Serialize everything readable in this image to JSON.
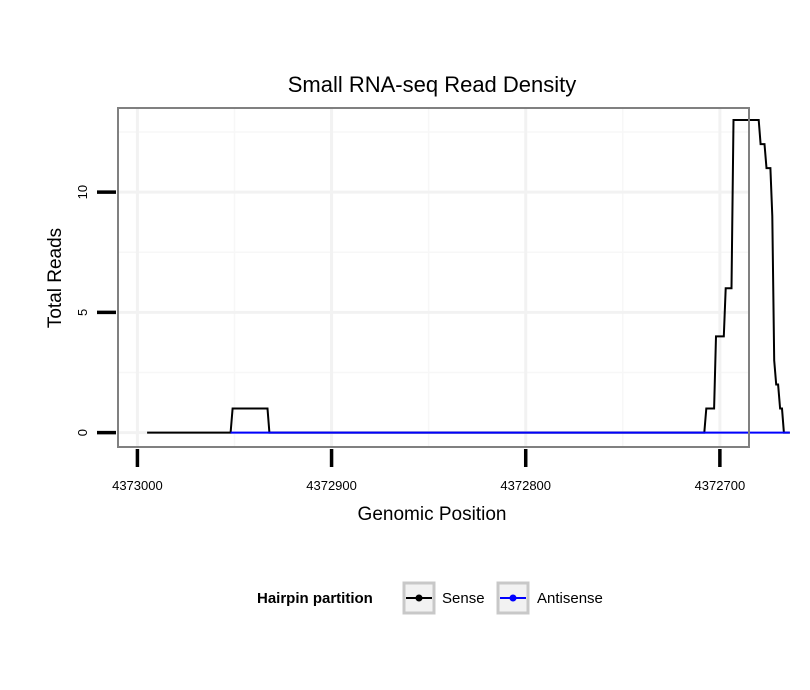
{
  "chart_data": {
    "type": "line",
    "title": "Small RNA-seq Read Density",
    "xlabel": "Genomic Position",
    "ylabel": "Total Reads",
    "x_reversed": true,
    "xlim": [
      4373010,
      4372685
    ],
    "ylim": [
      -0.6,
      13.5
    ],
    "x_ticks": [
      4373000,
      4372900,
      4372800,
      4372700
    ],
    "x_tick_labels": [
      "4373000",
      "4372900",
      "4372800",
      "4372700"
    ],
    "x_minor_ticks": [
      4372950,
      4372850,
      4372750
    ],
    "y_ticks": [
      0,
      5,
      10
    ],
    "y_tick_labels": [
      "0",
      "5",
      "10"
    ],
    "y_minor_ticks": [
      2.5,
      7.5,
      12.5
    ],
    "grid": true,
    "legend": {
      "title": "Hairpin partition",
      "position": "bottom",
      "entries": [
        "Sense",
        "Antisense"
      ]
    },
    "series": [
      {
        "name": "Sense",
        "color": "#000000",
        "x": [
          4372995,
          4372952,
          4372951,
          4372933,
          4372932,
          4372708,
          4372707,
          4372703,
          4372702,
          4372698,
          4372697,
          4372694,
          4372693,
          4372690,
          4372689,
          4372680,
          4372679,
          4372677,
          4372676,
          4372674,
          4372673,
          4372672,
          4372671,
          4372670,
          4372669,
          4372668,
          4372667,
          4372666,
          4372665,
          4372664
        ],
        "y": [
          0,
          0,
          1,
          1,
          0,
          0,
          1,
          1,
          4,
          4,
          6,
          6,
          13,
          13,
          13,
          13,
          12,
          12,
          11,
          11,
          9,
          3,
          2,
          2,
          1,
          1,
          0,
          0,
          0,
          0
        ]
      },
      {
        "name": "Antisense",
        "color": "#0000ff",
        "x": [
          4372952,
          4372932,
          4372708,
          4372664
        ],
        "y": [
          0,
          0,
          0,
          0
        ]
      }
    ]
  }
}
